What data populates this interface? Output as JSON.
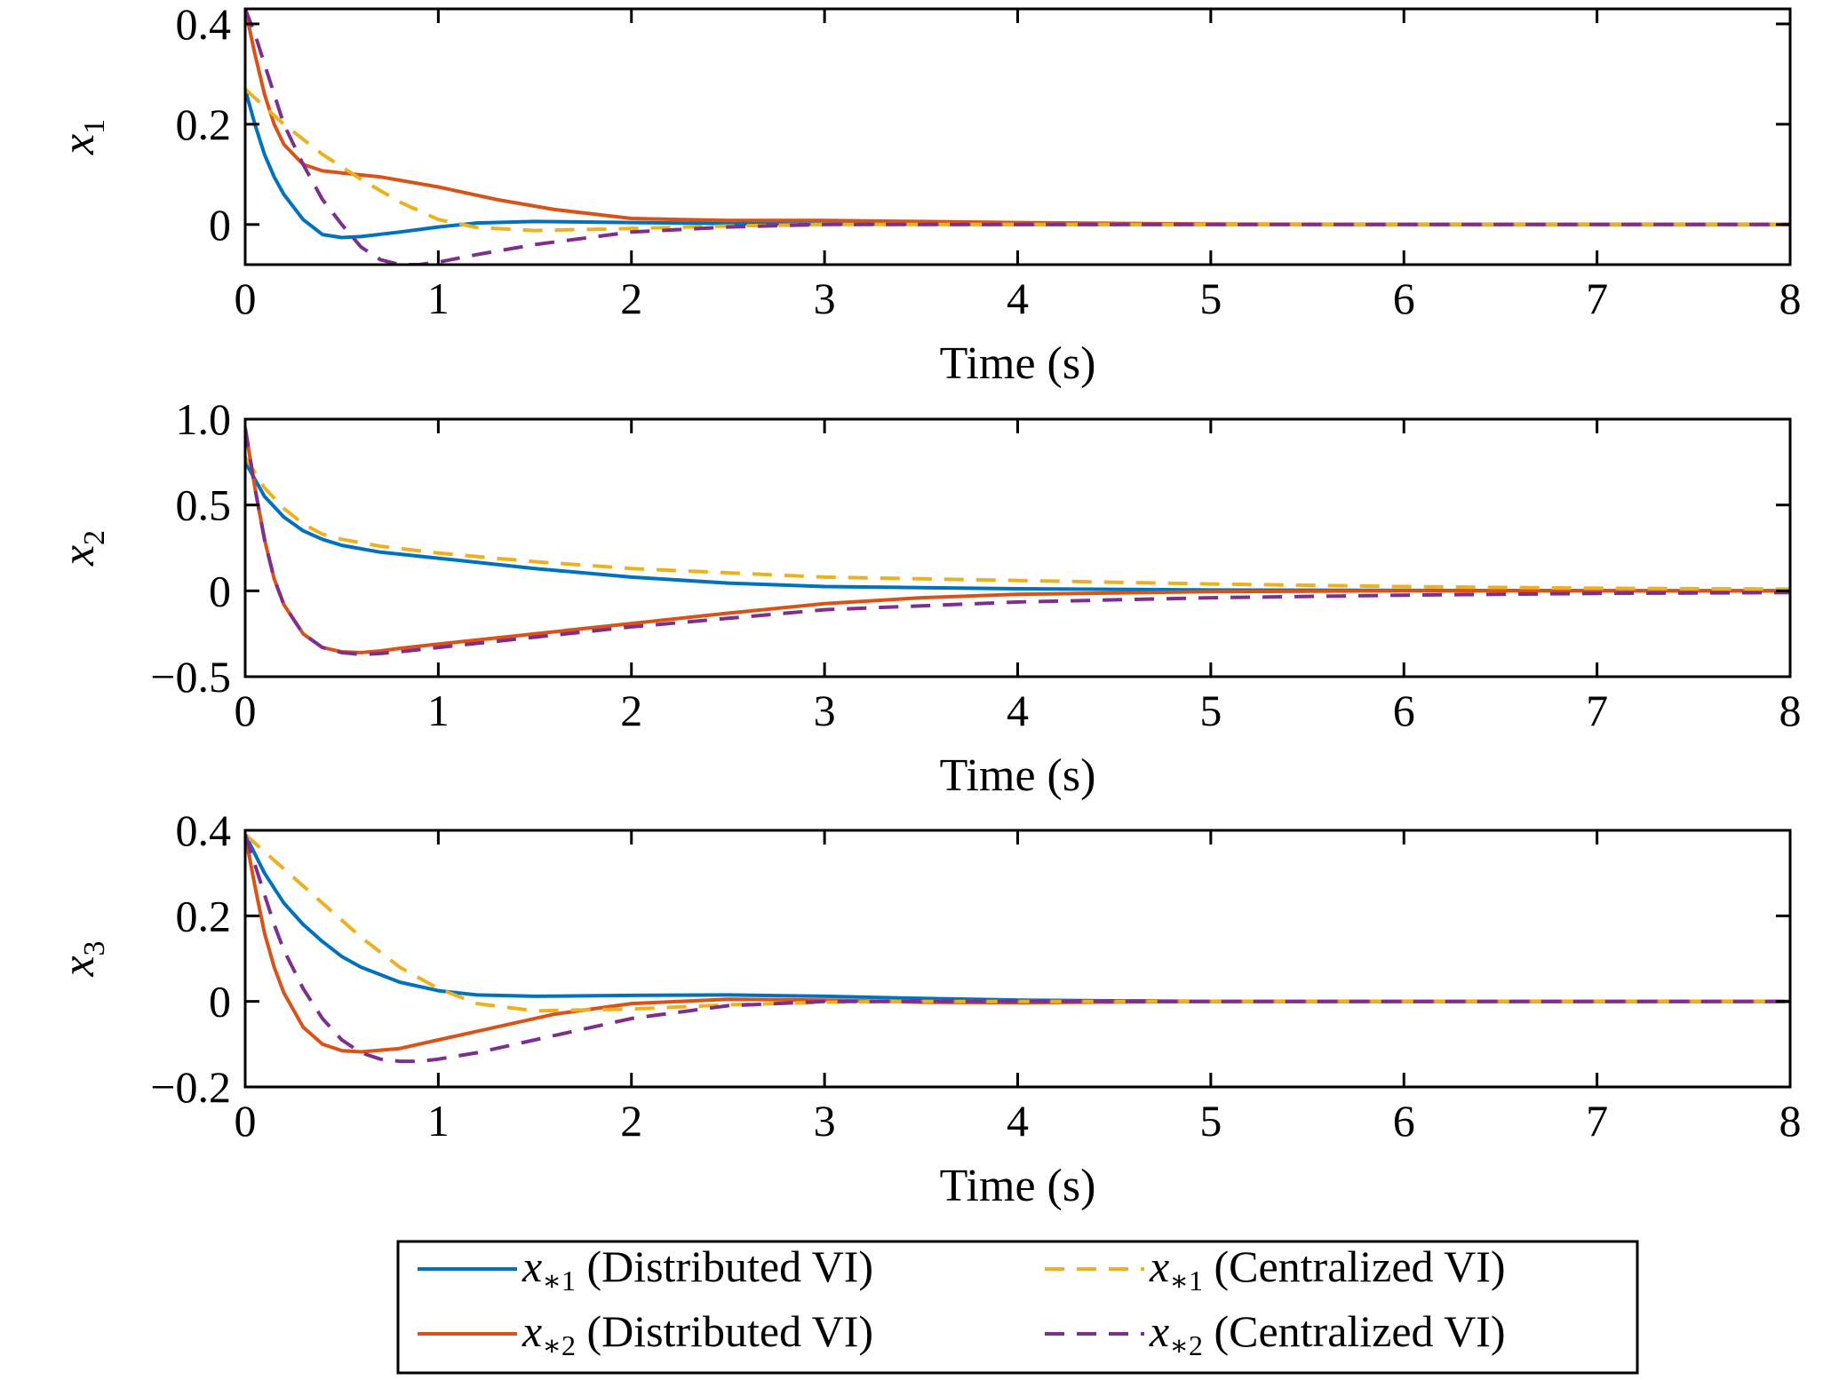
{
  "colors": {
    "blue": "#0072BD",
    "orange": "#D95319",
    "yellow": "#EDB120",
    "purple": "#7E2F8E"
  },
  "chart_data": [
    {
      "type": "line",
      "ylabel": "x",
      "ylabel_sub": "1",
      "xlabel": "Time (s)",
      "xlim": [
        0,
        8
      ],
      "ylim": [
        -0.08,
        0.43
      ],
      "x_ticks": [
        "0",
        "1",
        "2",
        "3",
        "4",
        "5",
        "6",
        "7",
        "8"
      ],
      "y_ticks": [
        {
          "value": 0,
          "label": "0"
        },
        {
          "value": 0.2,
          "label": "0.2"
        },
        {
          "value": 0.4,
          "label": "0.4"
        }
      ],
      "grid": false,
      "series": [
        {
          "key": "d1",
          "color_key": "blue",
          "dash": false,
          "x": [
            0,
            0.05,
            0.1,
            0.15,
            0.2,
            0.3,
            0.4,
            0.5,
            0.6,
            0.8,
            1.0,
            1.2,
            1.5,
            2.0,
            2.5,
            3.0,
            4.0,
            5.0,
            6.0,
            8.0
          ],
          "y": [
            0.27,
            0.2,
            0.14,
            0.095,
            0.06,
            0.01,
            -0.02,
            -0.026,
            -0.024,
            -0.015,
            -0.005,
            0.003,
            0.006,
            0.004,
            0.002,
            0.001,
            0,
            0,
            0,
            0
          ]
        },
        {
          "key": "d2",
          "color_key": "orange",
          "dash": false,
          "x": [
            0,
            0.05,
            0.1,
            0.15,
            0.2,
            0.3,
            0.4,
            0.5,
            0.7,
            1.0,
            1.3,
            1.6,
            2.0,
            2.5,
            3.0,
            3.5,
            4.0,
            5.0,
            6.0,
            8.0
          ],
          "y": [
            0.43,
            0.34,
            0.26,
            0.2,
            0.16,
            0.12,
            0.107,
            0.103,
            0.095,
            0.075,
            0.05,
            0.03,
            0.012,
            0.008,
            0.008,
            0.006,
            0.004,
            0.001,
            0,
            0
          ]
        },
        {
          "key": "c1",
          "color_key": "yellow",
          "dash": true,
          "x": [
            0,
            0.1,
            0.2,
            0.3,
            0.4,
            0.5,
            0.6,
            0.8,
            1.0,
            1.2,
            1.5,
            2.0,
            2.5,
            3.0,
            4.0,
            5.0,
            6.0,
            8.0
          ],
          "y": [
            0.27,
            0.235,
            0.2,
            0.17,
            0.14,
            0.115,
            0.09,
            0.045,
            0.01,
            -0.006,
            -0.012,
            -0.008,
            -0.003,
            0,
            0,
            0,
            0,
            0
          ]
        },
        {
          "key": "c2",
          "color_key": "purple",
          "dash": true,
          "x": [
            0,
            0.05,
            0.1,
            0.15,
            0.2,
            0.3,
            0.4,
            0.5,
            0.6,
            0.7,
            0.8,
            0.9,
            1.0,
            1.2,
            1.5,
            2.0,
            2.5,
            3.0,
            4.0,
            5.0,
            6.0,
            8.0
          ],
          "y": [
            0.43,
            0.38,
            0.32,
            0.26,
            0.2,
            0.12,
            0.05,
            0.0,
            -0.045,
            -0.07,
            -0.08,
            -0.08,
            -0.075,
            -0.06,
            -0.04,
            -0.015,
            -0.005,
            0,
            0,
            0,
            0,
            0
          ]
        }
      ]
    },
    {
      "type": "line",
      "ylabel": "x",
      "ylabel_sub": "2",
      "xlabel": "Time (s)",
      "xlim": [
        0,
        8
      ],
      "ylim": [
        -0.5,
        1.0
      ],
      "x_ticks": [
        "0",
        "1",
        "2",
        "3",
        "4",
        "5",
        "6",
        "7",
        "8"
      ],
      "y_ticks": [
        {
          "value": -0.5,
          "label": "−0.5"
        },
        {
          "value": 0,
          "label": "0"
        },
        {
          "value": 0.5,
          "label": "0.5"
        },
        {
          "value": 1.0,
          "label": "1.0"
        }
      ],
      "grid": false,
      "series": [
        {
          "key": "d1",
          "color_key": "blue",
          "dash": false,
          "x": [
            0,
            0.05,
            0.1,
            0.2,
            0.3,
            0.4,
            0.5,
            0.7,
            1.0,
            1.5,
            2.0,
            2.5,
            3.0,
            4.0,
            5.0,
            6.0,
            8.0
          ],
          "y": [
            0.75,
            0.65,
            0.55,
            0.43,
            0.35,
            0.3,
            0.265,
            0.225,
            0.19,
            0.13,
            0.08,
            0.045,
            0.025,
            0.012,
            0.005,
            0.002,
            0
          ]
        },
        {
          "key": "d2",
          "color_key": "orange",
          "dash": false,
          "x": [
            0,
            0.05,
            0.1,
            0.15,
            0.2,
            0.3,
            0.4,
            0.5,
            0.6,
            0.7,
            0.8,
            1.0,
            1.5,
            2.0,
            2.5,
            3.0,
            3.5,
            4.0,
            5.0,
            6.0,
            8.0
          ],
          "y": [
            0.95,
            0.6,
            0.3,
            0.07,
            -0.08,
            -0.25,
            -0.33,
            -0.355,
            -0.36,
            -0.35,
            -0.335,
            -0.31,
            -0.25,
            -0.19,
            -0.13,
            -0.075,
            -0.04,
            -0.02,
            -0.005,
            0,
            0
          ]
        },
        {
          "key": "c1",
          "color_key": "yellow",
          "dash": true,
          "x": [
            0,
            0.1,
            0.2,
            0.3,
            0.4,
            0.5,
            0.7,
            1.0,
            1.5,
            2.0,
            3.0,
            4.0,
            5.0,
            6.0,
            7.0,
            8.0
          ],
          "y": [
            0.78,
            0.6,
            0.48,
            0.39,
            0.33,
            0.3,
            0.26,
            0.22,
            0.17,
            0.13,
            0.08,
            0.06,
            0.04,
            0.025,
            0.015,
            0.01
          ]
        },
        {
          "key": "c2",
          "color_key": "purple",
          "dash": true,
          "x": [
            0,
            0.05,
            0.1,
            0.15,
            0.2,
            0.3,
            0.4,
            0.5,
            0.6,
            0.7,
            0.8,
            1.0,
            1.5,
            2.0,
            2.5,
            3.0,
            4.0,
            5.0,
            6.0,
            7.0,
            8.0
          ],
          "y": [
            0.95,
            0.6,
            0.3,
            0.07,
            -0.08,
            -0.25,
            -0.33,
            -0.36,
            -0.37,
            -0.365,
            -0.355,
            -0.33,
            -0.27,
            -0.21,
            -0.16,
            -0.11,
            -0.065,
            -0.04,
            -0.025,
            -0.015,
            -0.01
          ]
        }
      ]
    },
    {
      "type": "line",
      "ylabel": "x",
      "ylabel_sub": "3",
      "xlabel": "Time (s)",
      "xlim": [
        0,
        8
      ],
      "ylim": [
        -0.2,
        0.4
      ],
      "x_ticks": [
        "0",
        "1",
        "2",
        "3",
        "4",
        "5",
        "6",
        "7",
        "8"
      ],
      "y_ticks": [
        {
          "value": -0.2,
          "label": "−0.2"
        },
        {
          "value": 0,
          "label": "0"
        },
        {
          "value": 0.2,
          "label": "0.2"
        },
        {
          "value": 0.4,
          "label": "0.4"
        }
      ],
      "grid": false,
      "series": [
        {
          "key": "d1",
          "color_key": "blue",
          "dash": false,
          "x": [
            0,
            0.1,
            0.2,
            0.3,
            0.4,
            0.5,
            0.6,
            0.8,
            1.0,
            1.2,
            1.5,
            2.0,
            2.5,
            3.0,
            3.5,
            4.0,
            5.0,
            6.0,
            8.0
          ],
          "y": [
            0.39,
            0.3,
            0.23,
            0.18,
            0.14,
            0.105,
            0.08,
            0.045,
            0.025,
            0.015,
            0.012,
            0.014,
            0.015,
            0.012,
            0.007,
            0.003,
            0,
            0,
            0
          ]
        },
        {
          "key": "d2",
          "color_key": "orange",
          "dash": false,
          "x": [
            0,
            0.05,
            0.1,
            0.15,
            0.2,
            0.3,
            0.4,
            0.5,
            0.6,
            0.8,
            1.0,
            1.3,
            1.6,
            2.0,
            2.5,
            3.0,
            3.5,
            4.0,
            5.0,
            6.0,
            8.0
          ],
          "y": [
            0.39,
            0.27,
            0.16,
            0.08,
            0.02,
            -0.06,
            -0.1,
            -0.115,
            -0.118,
            -0.11,
            -0.09,
            -0.06,
            -0.03,
            -0.005,
            0.005,
            0.003,
            -0.002,
            -0.003,
            0,
            0,
            0
          ]
        },
        {
          "key": "c1",
          "color_key": "yellow",
          "dash": true,
          "x": [
            0,
            0.1,
            0.2,
            0.3,
            0.4,
            0.5,
            0.6,
            0.8,
            1.0,
            1.2,
            1.5,
            2.0,
            2.5,
            3.0,
            3.5,
            4.0,
            5.0,
            8.0
          ],
          "y": [
            0.39,
            0.35,
            0.31,
            0.27,
            0.23,
            0.19,
            0.15,
            0.08,
            0.03,
            -0.005,
            -0.022,
            -0.018,
            -0.008,
            -0.002,
            0,
            0,
            0,
            0
          ]
        },
        {
          "key": "c2",
          "color_key": "purple",
          "dash": true,
          "x": [
            0,
            0.05,
            0.1,
            0.15,
            0.2,
            0.3,
            0.4,
            0.5,
            0.6,
            0.7,
            0.8,
            0.9,
            1.0,
            1.2,
            1.5,
            2.0,
            2.5,
            3.0,
            4.0,
            5.0,
            8.0
          ],
          "y": [
            0.39,
            0.32,
            0.25,
            0.18,
            0.12,
            0.03,
            -0.04,
            -0.09,
            -0.12,
            -0.135,
            -0.14,
            -0.14,
            -0.135,
            -0.12,
            -0.09,
            -0.04,
            -0.01,
            0,
            0,
            0,
            0
          ]
        }
      ]
    }
  ],
  "legend": {
    "placement": "bottom",
    "items": [
      {
        "key": "d1",
        "color_key": "blue",
        "dash": false,
        "symbol": "x",
        "sub": "∗1",
        "text": " (Distributed VI)"
      },
      {
        "key": "c1",
        "color_key": "yellow",
        "dash": true,
        "symbol": "x",
        "sub": "∗1",
        "text": " (Centralized VI)"
      },
      {
        "key": "d2",
        "color_key": "orange",
        "dash": false,
        "symbol": "x",
        "sub": "∗2",
        "text": " (Distributed VI)"
      },
      {
        "key": "c2",
        "color_key": "purple",
        "dash": true,
        "symbol": "x",
        "sub": "∗2",
        "text": " (Centralized VI)"
      }
    ]
  }
}
